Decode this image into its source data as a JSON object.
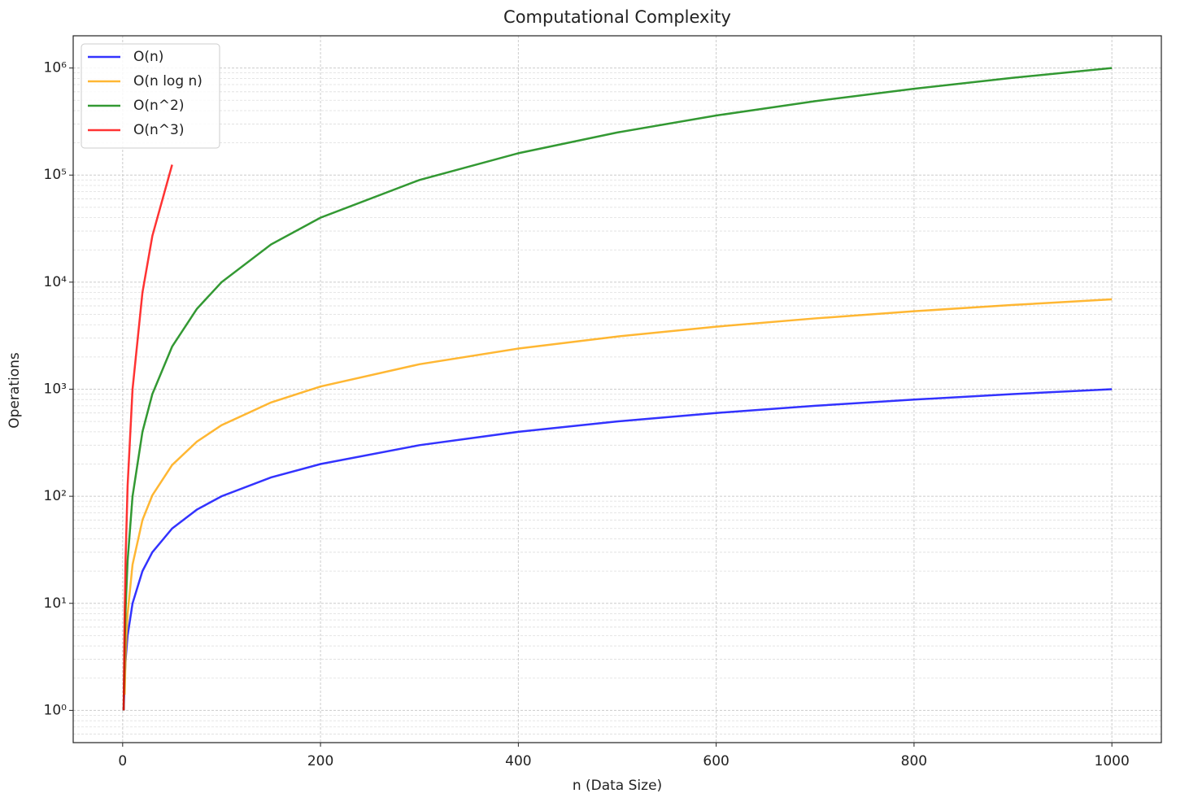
{
  "chart_data": {
    "type": "line",
    "title": "Computational Complexity",
    "x_label": "n (Data Size)",
    "y_label": "Operations",
    "x": [
      1,
      2,
      3,
      5,
      10,
      20,
      30,
      50,
      75,
      100,
      150,
      200,
      300,
      400,
      500,
      600,
      700,
      800,
      900,
      1000
    ],
    "series": [
      {
        "name": "O(n)",
        "color": "#0000ff",
        "values": [
          1,
          2,
          3,
          5,
          10,
          20,
          30,
          50,
          75,
          100,
          150,
          200,
          300,
          400,
          500,
          600,
          700,
          800,
          900,
          1000
        ]
      },
      {
        "name": "O(n log n)",
        "color": "#ffa500",
        "values": [
          null,
          1.4,
          3.3,
          8,
          23,
          60,
          102,
          196,
          324,
          461,
          752,
          1060,
          1711,
          2397,
          3107,
          3838,
          4586,
          5348,
          6122,
          6908
        ]
      },
      {
        "name": "O(n^2)",
        "color": "#008000",
        "values": [
          1,
          4,
          9,
          25,
          100,
          400,
          900,
          2500,
          5625,
          10000,
          22500,
          40000,
          90000,
          160000,
          250000,
          360000,
          490000,
          640000,
          810000,
          1000000
        ]
      },
      {
        "name": "O(n^3)",
        "color": "#ff0000",
        "values": [
          1,
          8,
          27,
          125,
          1000,
          8000,
          27000,
          125000,
          null,
          null,
          null,
          null,
          null,
          null,
          null,
          null,
          null,
          null,
          null,
          null
        ]
      }
    ],
    "xlim": [
      -50,
      1050
    ],
    "xticks": [
      0,
      200,
      400,
      600,
      800,
      1000
    ],
    "ylim": [
      0.5,
      2000000
    ],
    "ylog": true,
    "yticks": [
      {
        "value": 1,
        "label": "10⁰"
      },
      {
        "value": 10,
        "label": "10¹"
      },
      {
        "value": 100,
        "label": "10²"
      },
      {
        "value": 1000,
        "label": "10³"
      },
      {
        "value": 10000,
        "label": "10⁴"
      },
      {
        "value": 100000,
        "label": "10⁵"
      },
      {
        "value": 1000000,
        "label": "10⁶"
      }
    ],
    "grid": true,
    "minor_grid": true,
    "legend": "upper left"
  }
}
